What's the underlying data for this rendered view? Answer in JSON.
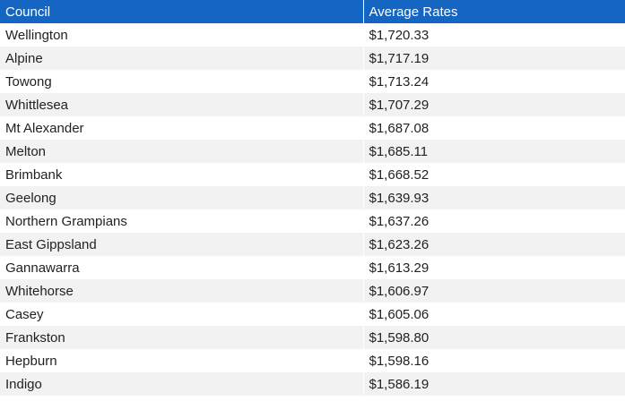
{
  "table": {
    "headers": [
      "Council",
      "Average Rates"
    ],
    "rows": [
      [
        "Wellington",
        "$1,720.33"
      ],
      [
        "Alpine",
        "$1,717.19"
      ],
      [
        "Towong",
        "$1,713.24"
      ],
      [
        "Whittlesea",
        "$1,707.29"
      ],
      [
        "Mt Alexander",
        "$1,687.08"
      ],
      [
        "Melton",
        "$1,685.11"
      ],
      [
        "Brimbank",
        "$1,668.52"
      ],
      [
        "Geelong",
        "$1,639.93"
      ],
      [
        "Northern Grampians",
        "$1,637.26"
      ],
      [
        "East Gippsland",
        "$1,623.26"
      ],
      [
        "Gannawarra",
        "$1,613.29"
      ],
      [
        "Whitehorse",
        "$1,606.97"
      ],
      [
        "Casey",
        "$1,605.06"
      ],
      [
        "Frankston",
        "$1,598.80"
      ],
      [
        "Hepburn",
        "$1,598.16"
      ],
      [
        "Indigo",
        "$1,586.19"
      ]
    ]
  },
  "colors": {
    "header_bg": "#1466c2",
    "header_text": "#ffffff",
    "row_alt_bg": "#f2f2f2"
  }
}
